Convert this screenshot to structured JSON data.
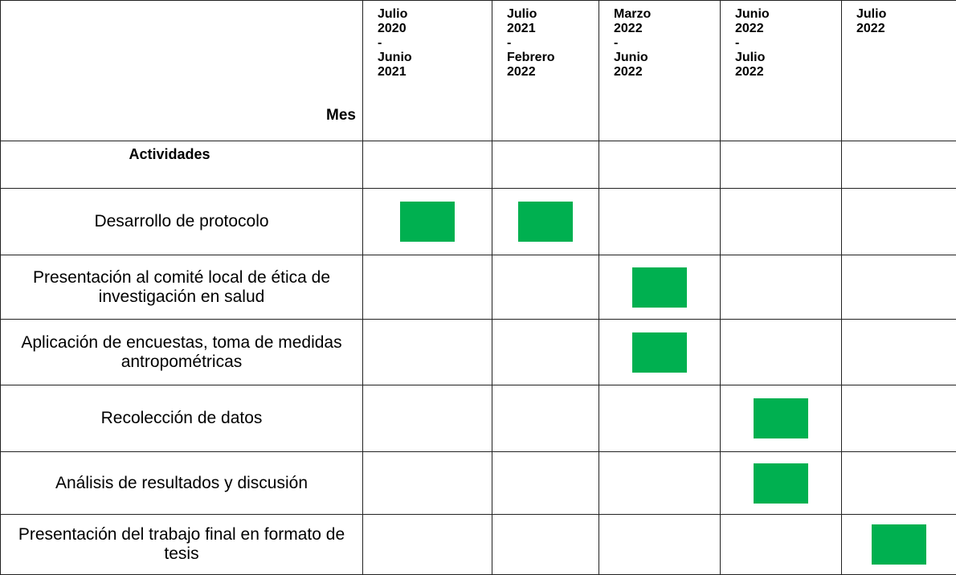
{
  "table": {
    "corner": "Mes",
    "columns": [
      [
        "Julio",
        "2020",
        "-",
        "Junio",
        "2021"
      ],
      [
        "Julio",
        "2021",
        "-",
        "Febrero",
        "2022"
      ],
      [
        "Marzo",
        "2022",
        "-",
        "Junio",
        "2022"
      ],
      [
        "Junio",
        "2022",
        "-",
        "Julio",
        "2022"
      ],
      [
        "Julio",
        "2022"
      ]
    ],
    "section": "Actividades",
    "rows": [
      {
        "label": "Desarrollo de protocolo",
        "marks": [
          true,
          true,
          false,
          false,
          false
        ]
      },
      {
        "label": "Presentación al comité local de ética de investigación en salud",
        "marks": [
          false,
          false,
          true,
          false,
          false
        ]
      },
      {
        "label": "Aplicación de encuestas, toma de medidas antropométricas",
        "marks": [
          false,
          false,
          true,
          false,
          false
        ]
      },
      {
        "label": "Recolección de datos",
        "marks": [
          false,
          false,
          false,
          true,
          false
        ]
      },
      {
        "label": "Análisis de resultados y discusión",
        "marks": [
          false,
          false,
          false,
          true,
          false
        ]
      },
      {
        "label": "Presentación del trabajo final en formato de tesis",
        "marks": [
          false,
          false,
          false,
          false,
          true
        ]
      }
    ]
  }
}
